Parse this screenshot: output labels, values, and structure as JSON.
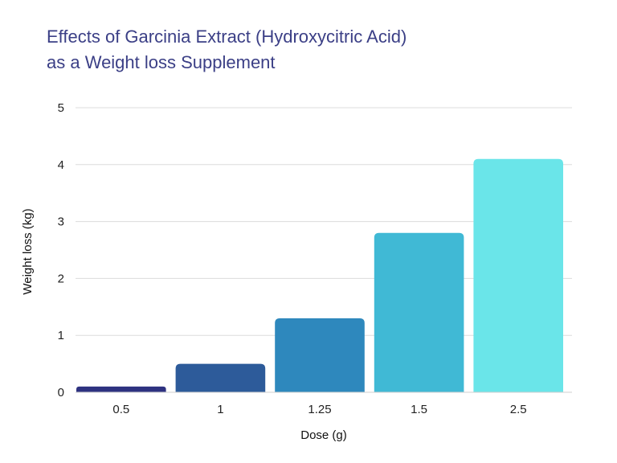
{
  "chart_data": {
    "type": "bar",
    "title_lines": [
      "Effects of Garcinia Extract (Hydroxycitric Acid)",
      "as a Weight loss Supplement"
    ],
    "xlabel": "Dose (g)",
    "ylabel": "Weight loss (kg)",
    "categories": [
      "0.5",
      "1",
      "1.25",
      "1.5",
      "2.5"
    ],
    "values": [
      0.1,
      0.5,
      1.3,
      2.8,
      4.1
    ],
    "ylim": [
      0,
      5
    ],
    "yticks": [
      "0",
      "1",
      "2",
      "3",
      "4",
      "5"
    ],
    "grid": true,
    "legend": "none",
    "colors": [
      "#2e3280",
      "#2d5b9a",
      "#2e88bd",
      "#40b9d5",
      "#6ae5e9"
    ]
  }
}
